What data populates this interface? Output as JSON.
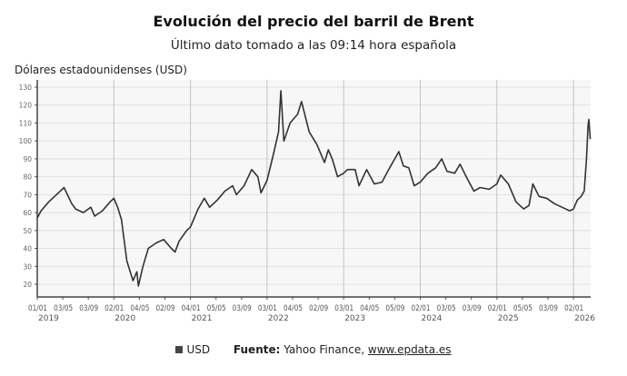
{
  "chart_data": {
    "type": "line",
    "title": "Evolución del precio del barril de Brent",
    "subtitle": "Último dato tomado a las 09:14 hora española",
    "ylabel": "Dólares estadounidenses (USD)",
    "xlabel": "",
    "ylim": [
      20,
      130
    ],
    "yticks": [
      20,
      30,
      40,
      50,
      60,
      70,
      80,
      90,
      100,
      110,
      120,
      130
    ],
    "xlim": [
      2019.0,
      2026.22
    ],
    "x_tick_labels": [
      "01/01",
      "03/05",
      "03/09",
      "02/01",
      "04/05",
      "02/09",
      "04/01",
      "05/05",
      "03/09",
      "03/01",
      "04/05",
      "02/09",
      "03/01",
      "04/05",
      "05/09",
      "02/01",
      "03/05",
      "03/09",
      "02/01",
      "05/05",
      "03/09",
      "02/01"
    ],
    "year_labels": [
      "2019",
      "2020",
      "2021",
      "2022",
      "2023",
      "2024",
      "2025",
      "2026"
    ],
    "grid": true,
    "legend_position": "bottom",
    "series": [
      {
        "name": "USD",
        "color": "#333333",
        "x": [
          2019.0,
          2019.05,
          2019.15,
          2019.3,
          2019.35,
          2019.45,
          2019.5,
          2019.6,
          2019.7,
          2019.75,
          2019.85,
          2019.95,
          2020.0,
          2020.05,
          2020.1,
          2020.17,
          2020.25,
          2020.3,
          2020.32,
          2020.38,
          2020.45,
          2020.55,
          2020.65,
          2020.75,
          2020.8,
          2020.85,
          2020.95,
          2021.0,
          2021.1,
          2021.18,
          2021.25,
          2021.35,
          2021.45,
          2021.55,
          2021.6,
          2021.7,
          2021.8,
          2021.88,
          2021.92,
          2022.0,
          2022.08,
          2022.15,
          2022.18,
          2022.22,
          2022.3,
          2022.4,
          2022.45,
          2022.55,
          2022.65,
          2022.75,
          2022.8,
          2022.85,
          2022.92,
          2023.0,
          2023.05,
          2023.15,
          2023.2,
          2023.3,
          2023.4,
          2023.5,
          2023.6,
          2023.72,
          2023.78,
          2023.85,
          2023.92,
          2024.0,
          2024.1,
          2024.2,
          2024.28,
          2024.35,
          2024.45,
          2024.52,
          2024.6,
          2024.7,
          2024.78,
          2024.9,
          2025.0,
          2025.05,
          2025.15,
          2025.25,
          2025.35,
          2025.42,
          2025.47,
          2025.55,
          2025.65,
          2025.75,
          2025.85,
          2025.95,
          2026.0,
          2026.05,
          2026.1,
          2026.14,
          2026.17,
          2026.19,
          2026.2,
          2026.22
        ],
        "values": [
          57,
          61,
          66,
          72,
          74,
          65,
          62,
          60,
          63,
          58,
          61,
          66,
          68,
          63,
          56,
          33,
          22,
          27,
          19,
          30,
          40,
          43,
          45,
          40,
          38,
          44,
          50,
          52,
          62,
          68,
          63,
          67,
          72,
          75,
          70,
          75,
          84,
          80,
          71,
          78,
          92,
          105,
          128,
          100,
          110,
          115,
          122,
          105,
          98,
          88,
          95,
          90,
          80,
          82,
          84,
          84,
          75,
          84,
          76,
          77,
          85,
          94,
          86,
          85,
          75,
          77,
          82,
          85,
          90,
          83,
          82,
          87,
          80,
          72,
          74,
          73,
          76,
          81,
          76,
          66,
          62,
          64,
          76,
          69,
          68,
          65,
          63,
          61,
          62,
          67,
          69,
          72,
          90,
          108,
          112,
          101
        ]
      }
    ]
  },
  "legend": {
    "series_label": "USD",
    "source_label": "Fuente:",
    "source_text": " Yahoo Finance, ",
    "source_link": "www.epdata.es"
  }
}
